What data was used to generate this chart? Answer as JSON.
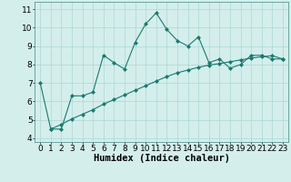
{
  "line1_x": [
    0,
    1,
    2,
    3,
    4,
    5,
    6,
    7,
    8,
    9,
    10,
    11,
    12,
    13,
    14,
    15,
    16,
    17,
    18,
    19,
    20,
    21,
    22,
    23
  ],
  "line1_y": [
    7.0,
    4.5,
    4.5,
    6.3,
    6.3,
    6.5,
    8.5,
    8.1,
    7.75,
    9.2,
    10.2,
    10.8,
    9.9,
    9.3,
    9.0,
    9.5,
    8.1,
    8.3,
    7.8,
    8.0,
    8.5,
    8.5,
    8.3,
    8.3
  ],
  "line2_x": [
    1,
    2,
    3,
    4,
    5,
    6,
    7,
    8,
    9,
    10,
    11,
    12,
    13,
    14,
    15,
    16,
    17,
    18,
    19,
    20,
    21,
    22,
    23
  ],
  "line2_y": [
    4.5,
    4.75,
    5.05,
    5.3,
    5.55,
    5.85,
    6.1,
    6.35,
    6.6,
    6.85,
    7.1,
    7.35,
    7.55,
    7.7,
    7.85,
    7.97,
    8.05,
    8.15,
    8.25,
    8.35,
    8.42,
    8.48,
    8.3
  ],
  "line_color": "#1a7a6e",
  "bg_color": "#d4eeec",
  "grid_color": "#aad8d4",
  "xlabel": "Humidex (Indice chaleur)",
  "ylabel_ticks": [
    4,
    5,
    6,
    7,
    8,
    9,
    10,
    11
  ],
  "xlim": [
    -0.5,
    23.5
  ],
  "ylim": [
    3.8,
    11.4
  ],
  "xticks": [
    0,
    1,
    2,
    3,
    4,
    5,
    6,
    7,
    8,
    9,
    10,
    11,
    12,
    13,
    14,
    15,
    16,
    17,
    18,
    19,
    20,
    21,
    22,
    23
  ],
  "xlabel_fontsize": 7.5,
  "tick_fontsize": 6.5
}
